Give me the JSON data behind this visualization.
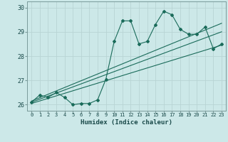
{
  "xlabel": "Humidex (Indice chaleur)",
  "xlim": [
    -0.5,
    23.5
  ],
  "ylim": [
    25.75,
    30.25
  ],
  "yticks": [
    26,
    27,
    28,
    29,
    30
  ],
  "xticks": [
    0,
    1,
    2,
    3,
    4,
    5,
    6,
    7,
    8,
    9,
    10,
    11,
    12,
    13,
    14,
    15,
    16,
    17,
    18,
    19,
    20,
    21,
    22,
    23
  ],
  "bg_color": "#cce8e8",
  "grid_color": "#b8d4d4",
  "line_color": "#1a6b5a",
  "series1_x": [
    0,
    1,
    2,
    3,
    4,
    5,
    6,
    7,
    8,
    9,
    10,
    11,
    12,
    13,
    14,
    15,
    16,
    17,
    18,
    19,
    20,
    21,
    22,
    23
  ],
  "series1_y": [
    26.1,
    26.4,
    26.3,
    26.5,
    26.3,
    26.0,
    26.05,
    26.05,
    26.2,
    27.05,
    28.6,
    29.45,
    29.45,
    28.5,
    28.6,
    29.3,
    29.85,
    29.7,
    29.1,
    28.9,
    28.9,
    29.2,
    28.3,
    28.5
  ],
  "series2_x": [
    0,
    23
  ],
  "series2_y": [
    26.05,
    28.45
  ],
  "series3_x": [
    0,
    23
  ],
  "series3_y": [
    26.1,
    29.0
  ],
  "series4_x": [
    0,
    23
  ],
  "series4_y": [
    26.15,
    29.35
  ]
}
